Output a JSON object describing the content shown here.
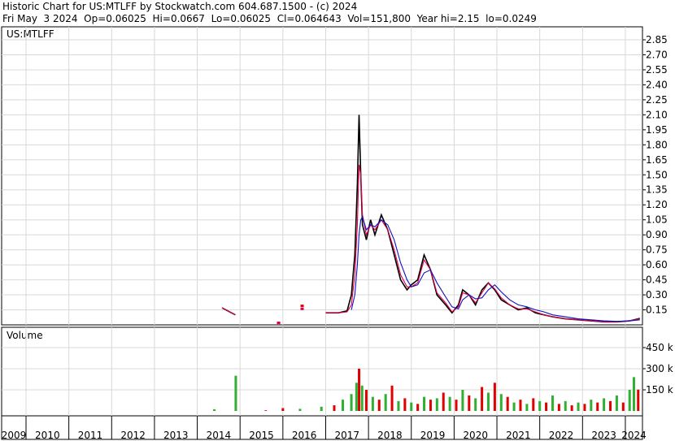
{
  "header": {
    "title": "Historic Chart for US:MTLFF by Stockwatch.com 604.687.1500 - (c) 2024",
    "quote": "Fri May  3 2024  Op=0.06025  Hi=0.0667  Lo=0.06025  Cl=0.064643  Vol=151,800  Year hi=2.15  lo=0.0249"
  },
  "chart_data": [
    {
      "type": "line",
      "label": "US:MTLFF",
      "x": [
        2014.58,
        2014.89,
        2015.67,
        2015.9,
        2016.31,
        2016.45,
        2016.8,
        2017.0,
        2017.3,
        2017.5,
        2017.6,
        2017.68,
        2017.74,
        2017.78,
        2017.82,
        2017.86,
        2017.95,
        2018.05,
        2018.15,
        2018.3,
        2018.45,
        2018.6,
        2018.75,
        2018.9,
        2019.0,
        2019.15,
        2019.3,
        2019.45,
        2019.6,
        2019.8,
        2019.95,
        2020.1,
        2020.2,
        2020.35,
        2020.5,
        2020.65,
        2020.8,
        2020.95,
        2021.1,
        2021.3,
        2021.5,
        2021.7,
        2021.9,
        2022.1,
        2022.3,
        2022.6,
        2022.9,
        2023.2,
        2023.5,
        2023.8,
        2024.1,
        2024.34
      ],
      "xlim": [
        2009.43,
        2024.4
      ],
      "xticks": [
        2009,
        2010,
        2011,
        2012,
        2013,
        2014,
        2015,
        2016,
        2017,
        2018,
        2019,
        2020,
        2021,
        2022,
        2023,
        2024
      ],
      "ylim": [
        0,
        2.98
      ],
      "yticks": [
        0.15,
        {
          "value": 0.3,
          "label": "0.30"
        },
        0.45,
        {
          "value": 0.6,
          "label": "0.60"
        },
        0.75,
        {
          "value": 0.9,
          "label": "0.90"
        },
        1.05,
        {
          "value": 1.2,
          "label": "1.20"
        },
        1.35,
        {
          "value": 1.5,
          "label": "1.50"
        },
        1.65,
        {
          "value": 1.8,
          "label": "1.80"
        },
        1.95,
        {
          "value": 2.1,
          "label": "2.10"
        },
        2.25,
        {
          "value": 2.4,
          "label": "2.40"
        },
        2.55,
        {
          "value": 2.7,
          "label": "2.70"
        },
        2.85
      ],
      "grid": true,
      "series": [
        {
          "color": "#000000",
          "values": [
            0.17,
            0.1,
            null,
            0.02,
            null,
            0.19,
            null,
            0.12,
            0.12,
            0.14,
            0.3,
            0.7,
            1.4,
            2.1,
            1.5,
            1.0,
            0.85,
            1.05,
            0.9,
            1.1,
            0.95,
            0.7,
            0.45,
            0.35,
            0.4,
            0.45,
            0.7,
            0.55,
            0.3,
            0.2,
            0.12,
            0.2,
            0.35,
            0.3,
            0.2,
            0.35,
            0.42,
            0.35,
            0.25,
            0.2,
            0.15,
            0.17,
            0.12,
            0.1,
            0.08,
            0.06,
            0.05,
            0.04,
            0.03,
            0.03,
            0.04,
            0.065
          ]
        },
        {
          "color": "#e0004a",
          "values": [
            0.17,
            0.1,
            null,
            0.02,
            null,
            0.16,
            null,
            0.12,
            0.12,
            0.13,
            0.2,
            0.5,
            1.0,
            1.6,
            1.5,
            1.1,
            0.9,
            1.0,
            0.95,
            1.05,
            0.95,
            0.75,
            0.5,
            0.38,
            0.38,
            0.42,
            0.65,
            0.55,
            0.32,
            0.22,
            0.13,
            0.18,
            0.32,
            0.3,
            0.22,
            0.32,
            0.42,
            0.36,
            0.27,
            0.2,
            0.16,
            0.16,
            0.13,
            0.1,
            0.08,
            0.06,
            0.05,
            0.04,
            0.03,
            0.03,
            0.04,
            0.06
          ]
        },
        {
          "color": "#1010c0",
          "values": [
            null,
            null,
            null,
            null,
            null,
            null,
            null,
            null,
            null,
            null,
            0.15,
            0.3,
            0.6,
            0.9,
            1.05,
            1.08,
            0.95,
            1.0,
            0.98,
            1.05,
            1.0,
            0.85,
            0.62,
            0.45,
            0.38,
            0.4,
            0.52,
            0.55,
            0.42,
            0.28,
            0.18,
            0.16,
            0.25,
            0.3,
            0.26,
            0.27,
            0.35,
            0.4,
            0.33,
            0.25,
            0.2,
            0.18,
            0.15,
            0.13,
            0.1,
            0.08,
            0.06,
            0.05,
            0.04,
            0.035,
            0.04,
            0.05
          ]
        }
      ]
    },
    {
      "type": "bar",
      "label": "Volume",
      "ylim": [
        0,
        594000
      ],
      "yticks": [
        {
          "value": 150000,
          "label": "150 k"
        },
        {
          "value": 300000,
          "label": "300 k"
        },
        {
          "value": 450000,
          "label": "450 k"
        }
      ],
      "x": [
        2014.4,
        2014.9,
        2015.6,
        2016.0,
        2016.4,
        2016.9,
        2017.2,
        2017.4,
        2017.6,
        2017.72,
        2017.78,
        2017.85,
        2017.95,
        2018.1,
        2018.25,
        2018.4,
        2018.55,
        2018.7,
        2018.85,
        2019.0,
        2019.15,
        2019.3,
        2019.45,
        2019.6,
        2019.75,
        2019.9,
        2020.05,
        2020.2,
        2020.35,
        2020.5,
        2020.65,
        2020.8,
        2020.95,
        2021.1,
        2021.25,
        2021.4,
        2021.55,
        2021.7,
        2021.85,
        2022.0,
        2022.15,
        2022.3,
        2022.45,
        2022.6,
        2022.75,
        2022.9,
        2023.05,
        2023.2,
        2023.35,
        2023.5,
        2023.65,
        2023.8,
        2023.95,
        2024.1,
        2024.2,
        2024.3
      ],
      "values": [
        12000,
        250000,
        5000,
        20000,
        15000,
        30000,
        40000,
        80000,
        120000,
        200000,
        300000,
        180000,
        150000,
        100000,
        80000,
        120000,
        180000,
        70000,
        90000,
        60000,
        50000,
        100000,
        80000,
        90000,
        130000,
        100000,
        80000,
        150000,
        110000,
        90000,
        170000,
        130000,
        200000,
        120000,
        100000,
        60000,
        80000,
        50000,
        90000,
        70000,
        60000,
        110000,
        50000,
        70000,
        40000,
        60000,
        50000,
        80000,
        60000,
        90000,
        70000,
        110000,
        60000,
        150000,
        240000,
        151800
      ],
      "colors": [
        "#30b030",
        "#30b030",
        "#e00000",
        "#e00000",
        "#30b030",
        "#30b030",
        "#e00000",
        "#30b030",
        "#30b030",
        "#30b030",
        "#e00000",
        "#30b030",
        "#e00000",
        "#30b030",
        "#e00000",
        "#30b030",
        "#e00000",
        "#30b030",
        "#e00000",
        "#30b030",
        "#e00000",
        "#30b030",
        "#e00000",
        "#30b030",
        "#e00000",
        "#30b030",
        "#e00000",
        "#30b030",
        "#e00000",
        "#30b030",
        "#e00000",
        "#30b030",
        "#e00000",
        "#30b030",
        "#e00000",
        "#30b030",
        "#e00000",
        "#30b030",
        "#e00000",
        "#30b030",
        "#e00000",
        "#30b030",
        "#e00000",
        "#30b030",
        "#e00000",
        "#30b030",
        "#e00000",
        "#30b030",
        "#e00000",
        "#30b030",
        "#e00000",
        "#30b030",
        "#e00000",
        "#30b030",
        "#30b030",
        "#e00000"
      ]
    }
  ]
}
